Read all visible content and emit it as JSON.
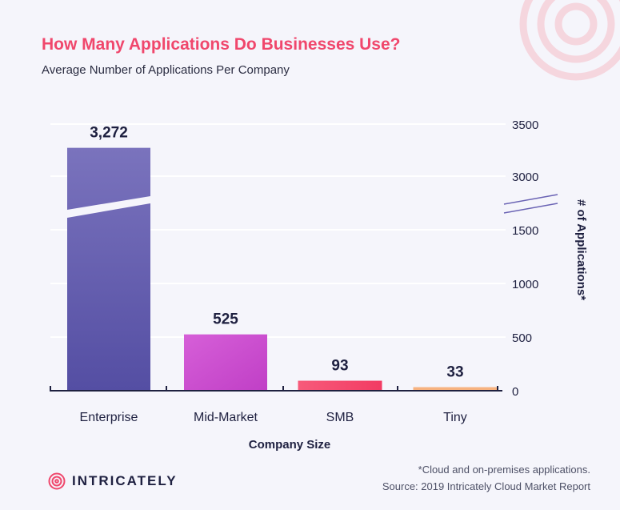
{
  "title": "How Many Applications Do Businesses Use?",
  "subtitle": "Average Number of Applications Per Company",
  "footnote_1": "*Cloud and on-premises applications.",
  "footnote_2": "Source: 2019 Intricately Cloud Market Report",
  "logo_text": "INTRICATELY",
  "colors": {
    "title": "#f0476c",
    "enterprise": "#6a63b4",
    "mid_market": "#cc4fcf",
    "smb": "#f5476b",
    "tiny": "#f7b27f",
    "axis": "#1e2040"
  },
  "chart_data": {
    "type": "bar",
    "categories": [
      "Enterprise",
      "Mid-Market",
      "SMB",
      "Tiny"
    ],
    "values": [
      3272,
      525,
      93,
      33
    ],
    "value_labels": [
      "3,272",
      "525",
      "93",
      "33"
    ],
    "xlabel": "Company Size",
    "ylabel": "# of Applications*",
    "y_ticks": [
      "3500",
      "3000",
      "1500",
      "1000",
      "500",
      "0"
    ],
    "y_tick_values": [
      3500,
      3000,
      1500,
      1000,
      500,
      0
    ],
    "axis_break": [
      1500,
      3000
    ],
    "ylim": [
      0,
      3500
    ],
    "grid": true,
    "y_axis_side": "right"
  }
}
